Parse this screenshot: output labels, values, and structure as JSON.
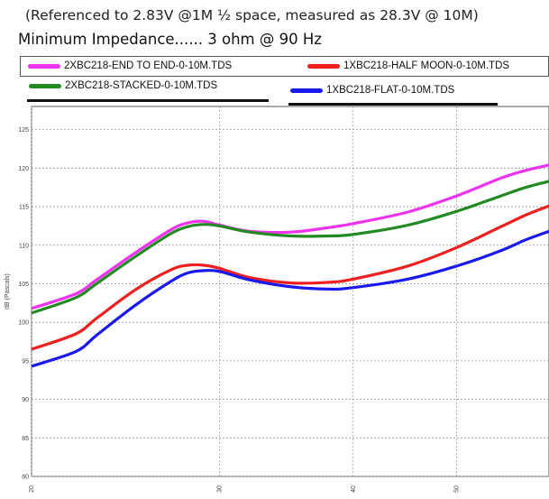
{
  "header": {
    "line1": "(Referenced to 2.83V @1M ½ space, measured as 28.3V @ 10M)",
    "line2": "Minimum Impedance...... 3 ohm @ 90 Hz"
  },
  "chart_data": {
    "type": "line",
    "ylabel": "dB (Pascals)",
    "ylim": [
      80,
      128
    ],
    "yticks": [
      80,
      85,
      90,
      95,
      100,
      105,
      110,
      115,
      120,
      125
    ],
    "xscale": "log",
    "xlim": [
      20,
      61
    ],
    "xticks": [
      20,
      30,
      40,
      50
    ],
    "grid": true,
    "legend_position": "top",
    "series": [
      {
        "name": "2XBC218-END TO END-0-10M.TDS",
        "color": "#ee33ee",
        "x": [
          20,
          22,
          23,
          25,
          27,
          28,
          29,
          30,
          32,
          35,
          38,
          40,
          45,
          50,
          55,
          58,
          61
        ],
        "y": [
          101.8,
          103.7,
          105.5,
          109,
          112,
          112.9,
          113.1,
          112.6,
          111.8,
          111.7,
          112.3,
          112.8,
          114.3,
          116.4,
          118.7,
          119.7,
          120.4
        ]
      },
      {
        "name": "1XBC218-HALF MOON-0-10M.TDS",
        "color": "#ee1f1f",
        "x": [
          20,
          22,
          23,
          25,
          27,
          28,
          29,
          30,
          32,
          35,
          38,
          40,
          45,
          50,
          55,
          58,
          61
        ],
        "y": [
          96.5,
          98.5,
          100.5,
          104.2,
          106.8,
          107.4,
          107.4,
          107,
          105.8,
          105.1,
          105.2,
          105.6,
          107.3,
          109.7,
          112.4,
          113.9,
          115.1
        ]
      },
      {
        "name": "2XBC218-STACKED-0-10M.TDS",
        "color": "#238a23",
        "x": [
          20,
          22,
          23,
          25,
          27,
          28,
          29,
          30,
          32,
          35,
          38,
          40,
          45,
          50,
          55,
          58,
          61
        ],
        "y": [
          101.2,
          103.2,
          105,
          108.5,
          111.5,
          112.4,
          112.7,
          112.5,
          111.7,
          111.2,
          111.2,
          111.4,
          112.6,
          114.4,
          116.4,
          117.5,
          118.3
        ]
      },
      {
        "name": "1XBC218-FLAT-0-10M.TDS",
        "color": "#1a1aee",
        "x": [
          20,
          22,
          23,
          25,
          27,
          28,
          29,
          30,
          32,
          35,
          38,
          40,
          45,
          50,
          55,
          58,
          61
        ],
        "y": [
          94.3,
          96.2,
          98.3,
          102.2,
          105.3,
          106.4,
          106.7,
          106.6,
          105.5,
          104.6,
          104.3,
          104.5,
          105.6,
          107.3,
          109.3,
          110.7,
          111.8
        ]
      }
    ]
  }
}
